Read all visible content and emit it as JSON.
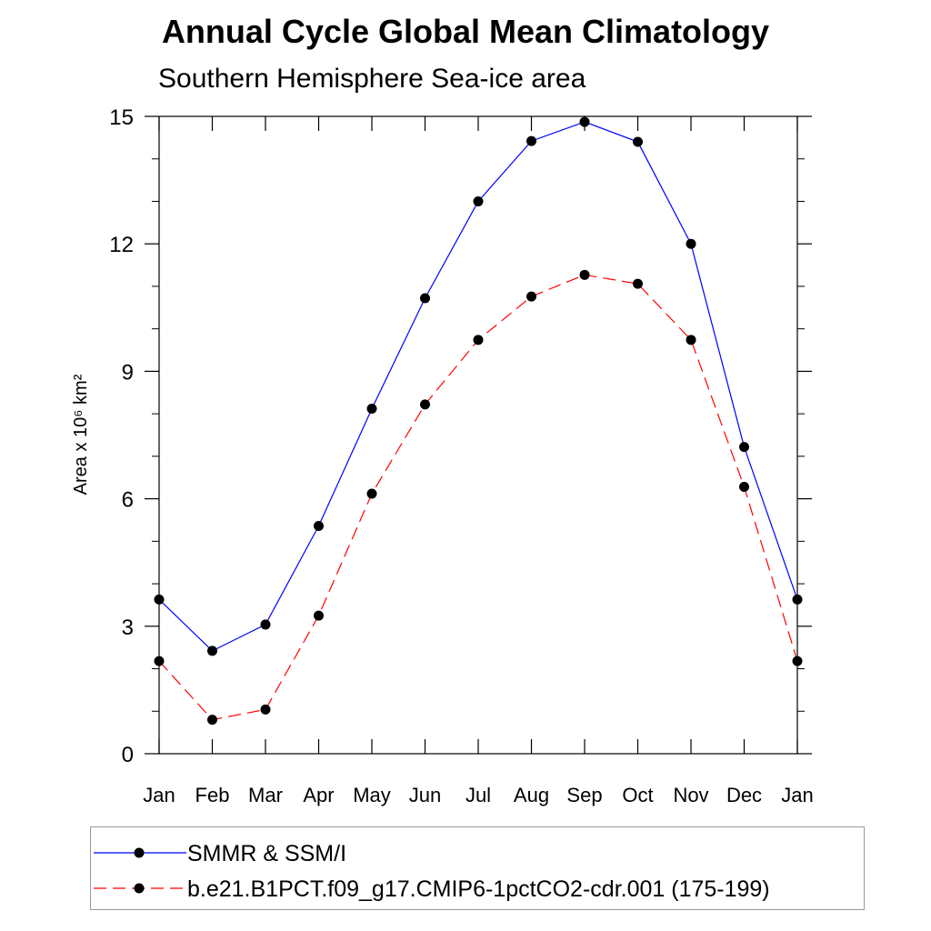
{
  "chart_data": {
    "type": "line",
    "title": "Annual Cycle Global Mean Climatology",
    "subtitle": "Southern Hemisphere Sea-ice area",
    "ylabel": "Area x 10⁶ km²",
    "xlabel": "",
    "categories": [
      "Jan",
      "Feb",
      "Mar",
      "Apr",
      "May",
      "Jun",
      "Jul",
      "Aug",
      "Sep",
      "Oct",
      "Nov",
      "Dec",
      "Jan"
    ],
    "ylim": [
      0,
      15
    ],
    "yticks": [
      0,
      3,
      6,
      9,
      12,
      15
    ],
    "grid": false,
    "legend_position": "bottom",
    "series": [
      {
        "name": "SMMR & SSM/I",
        "color": "#0000ff",
        "dash": "solid",
        "values": [
          3.63,
          2.42,
          3.04,
          5.36,
          8.12,
          10.72,
          13.0,
          14.42,
          14.87,
          14.4,
          12.0,
          7.22,
          3.63
        ]
      },
      {
        "name": "b.e21.B1PCT.f09_g17.CMIP6-1pctCO2-cdr.001 (175-199)",
        "color": "#ff0000",
        "dash": "dashed",
        "values": [
          2.18,
          0.8,
          1.04,
          3.25,
          6.12,
          8.22,
          9.74,
          10.76,
          11.27,
          11.06,
          9.74,
          6.28,
          2.18
        ]
      }
    ]
  }
}
